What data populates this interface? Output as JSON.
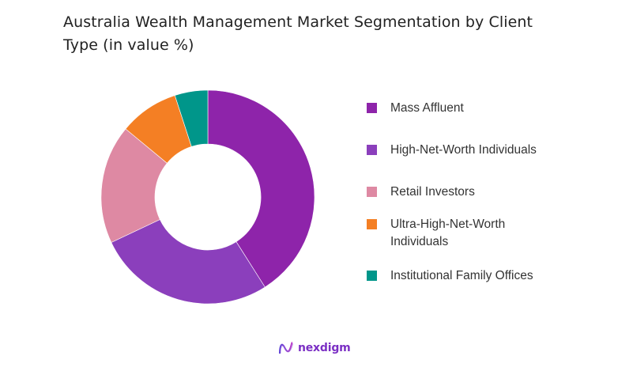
{
  "title": "Australia Wealth Management Market Segmentation by Client Type (in value %)",
  "chart_data": {
    "type": "pie",
    "subtype": "donut",
    "title": "Australia Wealth Management Market Segmentation by Client Type (in value %)",
    "categories": [
      "Mass Affluent",
      "High-Net-Worth Individuals",
      "Retail Investors",
      "Ultra-High-Net-Worth Individuals",
      "Institutional Family Offices"
    ],
    "values": [
      41,
      27,
      18,
      9,
      5
    ],
    "colors": [
      "#8E24AA",
      "#8B3FBC",
      "#DE89A3",
      "#F47F24",
      "#00968A"
    ],
    "unit": "%",
    "start_angle_deg": 0,
    "direction": "clockwise",
    "legend_position": "right",
    "data_labels": false
  },
  "legend": {
    "items": [
      {
        "label": "Mass Affluent",
        "color": "#8E24AA"
      },
      {
        "label": "High-Net-Worth Individuals",
        "color": "#8B3FBC"
      },
      {
        "label": "Retail Investors",
        "color": "#DE89A3"
      },
      {
        "label": "Ultra-High-Net-Worth Individuals",
        "color": "#F47F24"
      },
      {
        "label": "Institutional Family Offices",
        "color": "#00968A"
      }
    ]
  },
  "footer": {
    "logo_text": "nexdigm",
    "logo_icon": "nexdigm-wave-icon"
  }
}
